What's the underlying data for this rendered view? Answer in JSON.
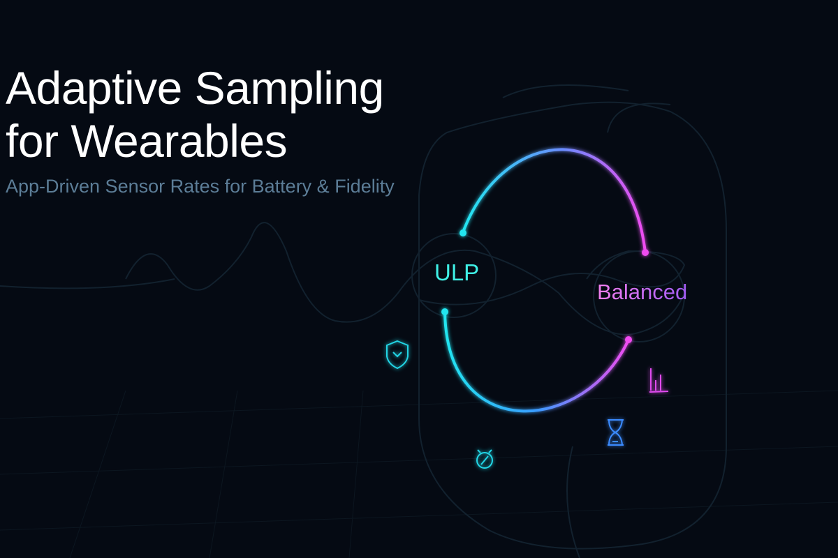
{
  "header": {
    "title_line1": "Adaptive Sampling",
    "title_line2": "for Wearables",
    "subtitle": "App-Driven Sensor Rates for Battery & Fidelity"
  },
  "diagram": {
    "nodes": [
      {
        "label": "ULP",
        "color": "#3ff0e6"
      },
      {
        "label": "Balanced",
        "color": "#c36cf3"
      }
    ],
    "icons": [
      "shield-check-icon",
      "stopwatch-icon",
      "hourglass-icon",
      "bar-chart-icon"
    ],
    "colors": {
      "cyan": "#22e6f0",
      "blue": "#3a8bff",
      "magenta": "#f04cf0",
      "background": "#050a13"
    }
  }
}
